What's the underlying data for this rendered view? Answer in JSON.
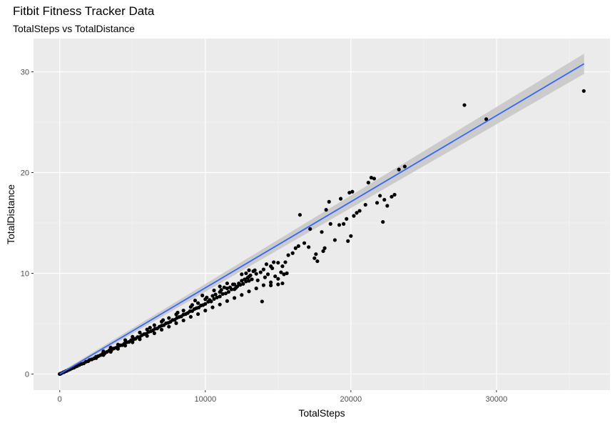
{
  "chart_data": {
    "type": "scatter",
    "title": "Fitbit Fitness Tracker Data",
    "subtitle": "TotalSteps vs TotalDistance",
    "xlabel": "TotalSteps",
    "ylabel": "TotalDistance",
    "xlim": [
      -1800,
      37800
    ],
    "ylim": [
      -1.6,
      33.3
    ],
    "x_ticks": [
      0,
      10000,
      20000,
      30000
    ],
    "y_ticks": [
      0,
      10,
      20,
      30
    ],
    "grid": true,
    "background": "#ebebeb",
    "point_color": "#000000",
    "smooth": {
      "method": "lm",
      "color": "#3366ff",
      "band_color": "#c8c8c8",
      "x": [
        0,
        36019
      ],
      "y": [
        0,
        30.8
      ],
      "band_halfwidth": [
        0.15,
        1.0
      ]
    },
    "points": [
      [
        0,
        0
      ],
      [
        0,
        0
      ],
      [
        15,
        0.01
      ],
      [
        40,
        0.02
      ],
      [
        120,
        0.08
      ],
      [
        250,
        0.17
      ],
      [
        300,
        0.19
      ],
      [
        420,
        0.28
      ],
      [
        480,
        0.31
      ],
      [
        600,
        0.4
      ],
      [
        720,
        0.47
      ],
      [
        850,
        0.57
      ],
      [
        980,
        0.63
      ],
      [
        1100,
        0.74
      ],
      [
        1200,
        0.79
      ],
      [
        1350,
        0.9
      ],
      [
        1500,
        1.0
      ],
      [
        1650,
        1.06
      ],
      [
        1800,
        1.22
      ],
      [
        1950,
        1.27
      ],
      [
        2050,
        1.4
      ],
      [
        2200,
        1.45
      ],
      [
        2350,
        1.55
      ],
      [
        2500,
        1.72
      ],
      [
        2650,
        1.78
      ],
      [
        2800,
        1.87
      ],
      [
        2950,
        2.02
      ],
      [
        3100,
        2.07
      ],
      [
        3250,
        2.2
      ],
      [
        3400,
        2.34
      ],
      [
        3550,
        2.36
      ],
      [
        3700,
        2.53
      ],
      [
        3850,
        2.6
      ],
      [
        4000,
        2.7
      ],
      [
        4150,
        2.85
      ],
      [
        4300,
        2.87
      ],
      [
        4450,
        3.04
      ],
      [
        4600,
        3.15
      ],
      [
        4750,
        3.18
      ],
      [
        4900,
        3.36
      ],
      [
        5050,
        3.42
      ],
      [
        5200,
        3.5
      ],
      [
        5350,
        3.67
      ],
      [
        5500,
        3.68
      ],
      [
        5650,
        3.86
      ],
      [
        5800,
        3.96
      ],
      [
        5950,
        4.0
      ],
      [
        6100,
        4.18
      ],
      [
        6250,
        4.24
      ],
      [
        6400,
        4.33
      ],
      [
        6550,
        4.5
      ],
      [
        6700,
        4.52
      ],
      [
        6850,
        4.7
      ],
      [
        7000,
        4.8
      ],
      [
        7150,
        4.85
      ],
      [
        7300,
        5.03
      ],
      [
        7450,
        5.08
      ],
      [
        7600,
        5.18
      ],
      [
        7750,
        5.36
      ],
      [
        7900,
        5.38
      ],
      [
        8050,
        5.57
      ],
      [
        8200,
        5.66
      ],
      [
        8350,
        5.72
      ],
      [
        8500,
        5.9
      ],
      [
        8650,
        5.95
      ],
      [
        8800,
        6.06
      ],
      [
        8950,
        6.24
      ],
      [
        9100,
        6.25
      ],
      [
        9250,
        6.45
      ],
      [
        9400,
        6.55
      ],
      [
        9550,
        6.6
      ],
      [
        9700,
        6.8
      ],
      [
        9850,
        6.85
      ],
      [
        10000,
        6.96
      ],
      [
        10200,
        7.18
      ],
      [
        10400,
        7.2
      ],
      [
        10600,
        7.45
      ],
      [
        10800,
        7.6
      ],
      [
        11000,
        7.7
      ],
      [
        11200,
        7.95
      ],
      [
        11400,
        8.0
      ],
      [
        11600,
        8.15
      ],
      [
        11800,
        8.4
      ],
      [
        12000,
        8.42
      ],
      [
        12200,
        8.7
      ],
      [
        12400,
        8.85
      ],
      [
        12600,
        8.95
      ],
      [
        12800,
        9.2
      ],
      [
        13000,
        9.25
      ],
      [
        13200,
        9.4
      ],
      [
        3000,
        2.25
      ],
      [
        3500,
        2.62
      ],
      [
        4000,
        2.92
      ],
      [
        4500,
        3.37
      ],
      [
        5000,
        3.7
      ],
      [
        5500,
        4.12
      ],
      [
        6000,
        4.42
      ],
      [
        6500,
        4.85
      ],
      [
        7000,
        5.2
      ],
      [
        7500,
        5.56
      ],
      [
        8000,
        5.92
      ],
      [
        8500,
        6.3
      ],
      [
        9000,
        6.66
      ],
      [
        9500,
        7.04
      ],
      [
        10000,
        7.42
      ],
      [
        10500,
        7.76
      ],
      [
        11000,
        8.14
      ],
      [
        11500,
        8.5
      ],
      [
        12000,
        8.9
      ],
      [
        12500,
        9.26
      ],
      [
        13000,
        9.66
      ],
      [
        13500,
        9.95
      ],
      [
        14000,
        10.38
      ],
      [
        14500,
        10.7
      ],
      [
        15000,
        11.05
      ],
      [
        2500,
        1.58
      ],
      [
        3000,
        1.88
      ],
      [
        3500,
        2.2
      ],
      [
        4000,
        2.5
      ],
      [
        4500,
        2.82
      ],
      [
        5000,
        3.15
      ],
      [
        5500,
        3.45
      ],
      [
        6000,
        3.78
      ],
      [
        6500,
        4.05
      ],
      [
        7000,
        4.4
      ],
      [
        7500,
        4.7
      ],
      [
        8000,
        5.05
      ],
      [
        8500,
        5.32
      ],
      [
        9000,
        5.68
      ],
      [
        9500,
        5.95
      ],
      [
        10000,
        6.3
      ],
      [
        10500,
        6.62
      ],
      [
        11000,
        6.9
      ],
      [
        11500,
        7.25
      ],
      [
        12000,
        7.55
      ],
      [
        12500,
        7.85
      ],
      [
        13000,
        8.2
      ],
      [
        13500,
        8.5
      ],
      [
        14000,
        8.82
      ],
      [
        14500,
        9.1
      ],
      [
        15000,
        9.45
      ],
      [
        6200,
        4.6
      ],
      [
        7100,
        5.35
      ],
      [
        8100,
        6.1
      ],
      [
        9100,
        6.85
      ],
      [
        10100,
        7.6
      ],
      [
        10300,
        7.35
      ],
      [
        10700,
        7.9
      ],
      [
        11100,
        8.35
      ],
      [
        11300,
        8.6
      ],
      [
        11700,
        8.6
      ],
      [
        11900,
        8.9
      ],
      [
        12100,
        8.55
      ],
      [
        12300,
        9.0
      ],
      [
        12700,
        9.4
      ],
      [
        12900,
        9.55
      ],
      [
        13100,
        9.8
      ],
      [
        13300,
        10.2
      ],
      [
        13400,
        10.3
      ],
      [
        13600,
        9.3
      ],
      [
        13800,
        10.1
      ],
      [
        14100,
        9.6
      ],
      [
        14300,
        9.9
      ],
      [
        14600,
        10.5
      ],
      [
        14800,
        9.7
      ],
      [
        15200,
        10.1
      ],
      [
        15300,
        10.7
      ],
      [
        15400,
        9.9
      ],
      [
        15500,
        11.1
      ],
      [
        15600,
        10.0
      ],
      [
        15700,
        11.8
      ],
      [
        13000,
        10.3
      ],
      [
        12800,
        10.0
      ],
      [
        12500,
        9.9
      ],
      [
        14200,
        10.9
      ],
      [
        14700,
        11.1
      ],
      [
        11000,
        8.7
      ],
      [
        11500,
        9.0
      ],
      [
        9800,
        7.8
      ],
      [
        9300,
        7.3
      ],
      [
        10600,
        8.3
      ],
      [
        13900,
        7.2
      ],
      [
        15000,
        8.9
      ],
      [
        14500,
        8.8
      ],
      [
        15300,
        9.0
      ],
      [
        16000,
        12.0
      ],
      [
        16200,
        12.5
      ],
      [
        16400,
        12.7
      ],
      [
        16500,
        15.8
      ],
      [
        16800,
        13.0
      ],
      [
        17200,
        14.4
      ],
      [
        17500,
        11.5
      ],
      [
        17100,
        12.6
      ],
      [
        17600,
        11.9
      ],
      [
        17700,
        11.2
      ],
      [
        18000,
        14.1
      ],
      [
        18100,
        12.2
      ],
      [
        18200,
        12.5
      ],
      [
        18300,
        16.3
      ],
      [
        18500,
        17.1
      ],
      [
        18600,
        14.9
      ],
      [
        18900,
        13.3
      ],
      [
        19200,
        14.8
      ],
      [
        19300,
        17.4
      ],
      [
        19500,
        14.9
      ],
      [
        19700,
        15.4
      ],
      [
        19900,
        18.0
      ],
      [
        20100,
        18.1
      ],
      [
        20000,
        13.7
      ],
      [
        19800,
        13.2
      ],
      [
        20200,
        15.7
      ],
      [
        20400,
        16.0
      ],
      [
        20600,
        16.2
      ],
      [
        21000,
        16.8
      ],
      [
        21200,
        19.0
      ],
      [
        21400,
        19.5
      ],
      [
        21600,
        19.4
      ],
      [
        21800,
        17.0
      ],
      [
        22000,
        17.7
      ],
      [
        22200,
        15.1
      ],
      [
        22300,
        17.3
      ],
      [
        22500,
        16.7
      ],
      [
        22800,
        17.6
      ],
      [
        23000,
        17.8
      ],
      [
        23300,
        20.3
      ],
      [
        23700,
        20.6
      ],
      [
        27800,
        26.7
      ],
      [
        29300,
        25.3
      ],
      [
        36000,
        28.1
      ]
    ]
  }
}
